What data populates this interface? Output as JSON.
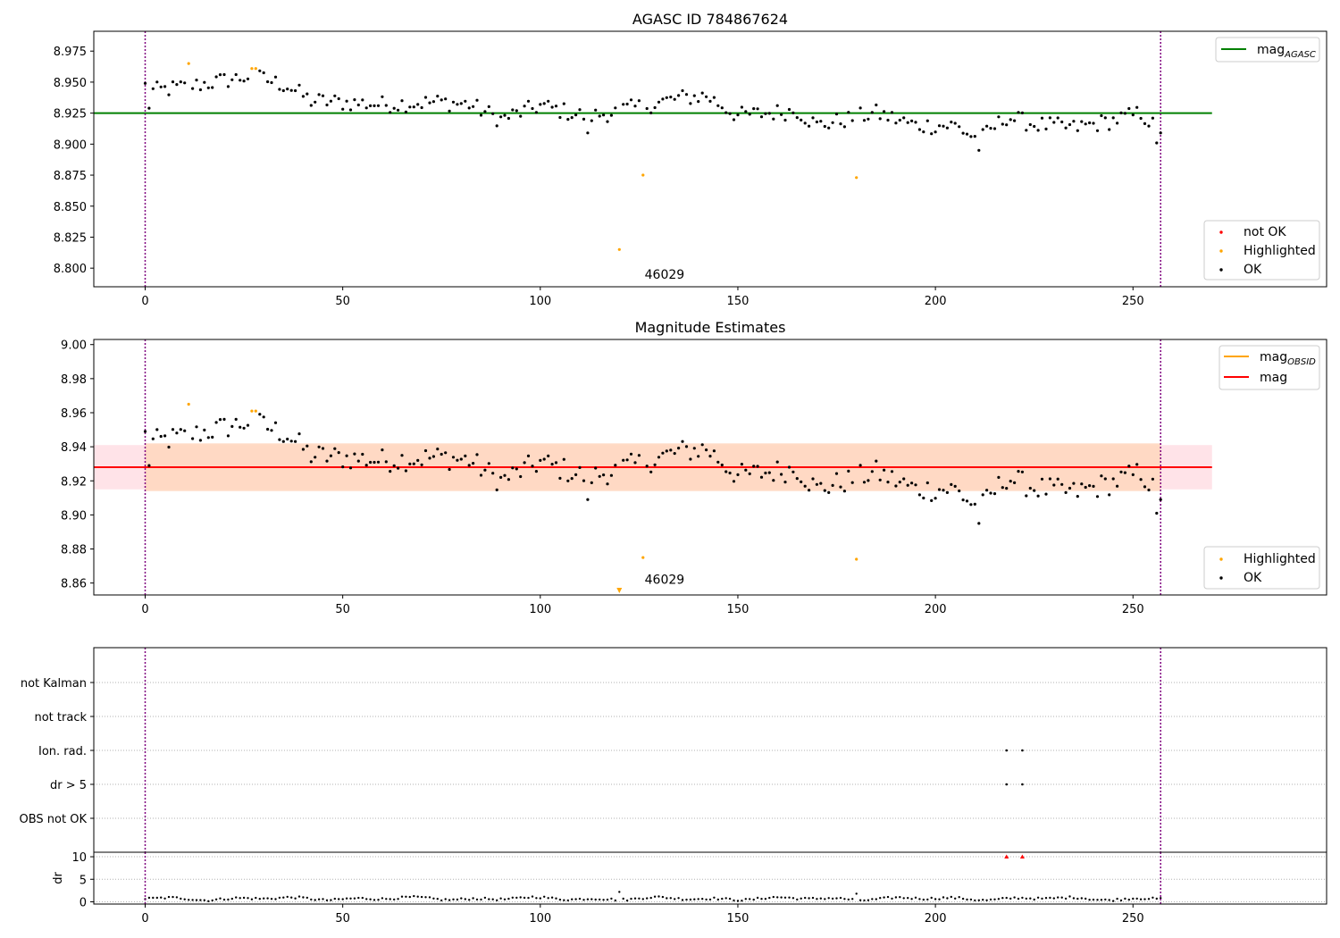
{
  "colors": {
    "ok": "#000000",
    "highlighted": "#ffa500",
    "not_ok": "#ff0000",
    "agasc_line": "#008000",
    "mag_line": "#ff0000",
    "mag_obsid_line": "#ffa500",
    "vline": "#800080",
    "band_outer": "#ffc0cb",
    "band_inner": "#ffd7c0"
  },
  "chart_data": [
    {
      "type": "scatter",
      "title": "AGASC ID 784867624",
      "xlim": [
        -13,
        299
      ],
      "ylim": [
        8.785,
        8.991
      ],
      "xticks": [
        0,
        50,
        100,
        150,
        200,
        250
      ],
      "yticks": [
        8.8,
        8.825,
        8.85,
        8.875,
        8.9,
        8.925,
        8.95,
        8.975
      ],
      "ytick_labels": [
        "8.800",
        "8.825",
        "8.850",
        "8.875",
        "8.900",
        "8.925",
        "8.950",
        "8.975"
      ],
      "grid": false,
      "hlines": [
        {
          "name": "mag_AGASC",
          "y": 8.925,
          "x_range": [
            -13,
            270
          ]
        }
      ],
      "vlines": [
        0,
        257
      ],
      "annotation": {
        "text": "46029",
        "x": 128,
        "y": 8.795
      },
      "legend_lines": {
        "items": [
          {
            "label": "mag",
            "sub": "AGASC"
          }
        ],
        "placement": "upper right"
      },
      "legend_points": {
        "items": [
          "not OK",
          "Highlighted",
          "OK"
        ],
        "placement": "lower right"
      },
      "highlighted": [
        {
          "x": 11,
          "y": 8.965
        },
        {
          "x": 27,
          "y": 8.961
        },
        {
          "x": 28,
          "y": 8.961
        },
        {
          "x": 120,
          "y": 8.815
        },
        {
          "x": 126,
          "y": 8.875
        },
        {
          "x": 180,
          "y": 8.873
        }
      ]
    },
    {
      "type": "scatter",
      "title": "Magnitude Estimates",
      "xlim": [
        -13,
        299
      ],
      "ylim": [
        8.853,
        9.003
      ],
      "xticks": [
        0,
        50,
        100,
        150,
        200,
        250
      ],
      "yticks": [
        8.86,
        8.88,
        8.9,
        8.92,
        8.94,
        8.96,
        8.98,
        9.0
      ],
      "ytick_labels": [
        "8.86",
        "8.88",
        "8.90",
        "8.92",
        "8.94",
        "8.96",
        "8.98",
        "9.00"
      ],
      "grid": false,
      "mag": 8.928,
      "band_outer": [
        8.915,
        8.941
      ],
      "band_inner": [
        8.914,
        8.942
      ],
      "band_x_range": [
        -13,
        270
      ],
      "vlines": [
        0,
        257
      ],
      "annotation": {
        "text": "46029",
        "x": 128,
        "y": 8.857
      },
      "marker_below": {
        "x": 120,
        "y": 8.855
      },
      "legend_lines": {
        "items": [
          {
            "label": "mag",
            "sub": "OBSID"
          },
          {
            "label": "mag",
            "sub": ""
          }
        ],
        "placement": "upper right"
      },
      "legend_points": {
        "items": [
          "Highlighted",
          "OK"
        ],
        "placement": "lower right"
      },
      "highlighted": [
        {
          "x": 11,
          "y": 8.965
        },
        {
          "x": 27,
          "y": 8.961
        },
        {
          "x": 28,
          "y": 8.961
        },
        {
          "x": 126,
          "y": 8.875
        },
        {
          "x": 180,
          "y": 8.874
        }
      ]
    },
    {
      "type": "scatter",
      "title": "",
      "xlim": [
        -13,
        299
      ],
      "categories": [
        "OBS not OK",
        "dr > 5",
        "Ion. rad.",
        "not track",
        "not Kalman"
      ],
      "flags": [
        {
          "x": 218,
          "category": "Ion. rad."
        },
        {
          "x": 222,
          "category": "Ion. rad."
        },
        {
          "x": 218,
          "category": "dr > 5"
        },
        {
          "x": 222,
          "category": "dr > 5"
        }
      ],
      "grid": "dotted",
      "vlines": [
        0,
        257
      ]
    },
    {
      "type": "scatter",
      "title": "",
      "xlim": [
        -13,
        299
      ],
      "ylim": [
        -0.5,
        11
      ],
      "xticks": [
        0,
        50,
        100,
        150,
        200,
        250
      ],
      "yticks": [
        0,
        5,
        10
      ],
      "ylabel": "dr",
      "grid": "dotted",
      "vlines": [
        0,
        257
      ],
      "clipped": [
        {
          "x": 218,
          "y": 10
        },
        {
          "x": 222,
          "y": 10
        }
      ]
    }
  ]
}
